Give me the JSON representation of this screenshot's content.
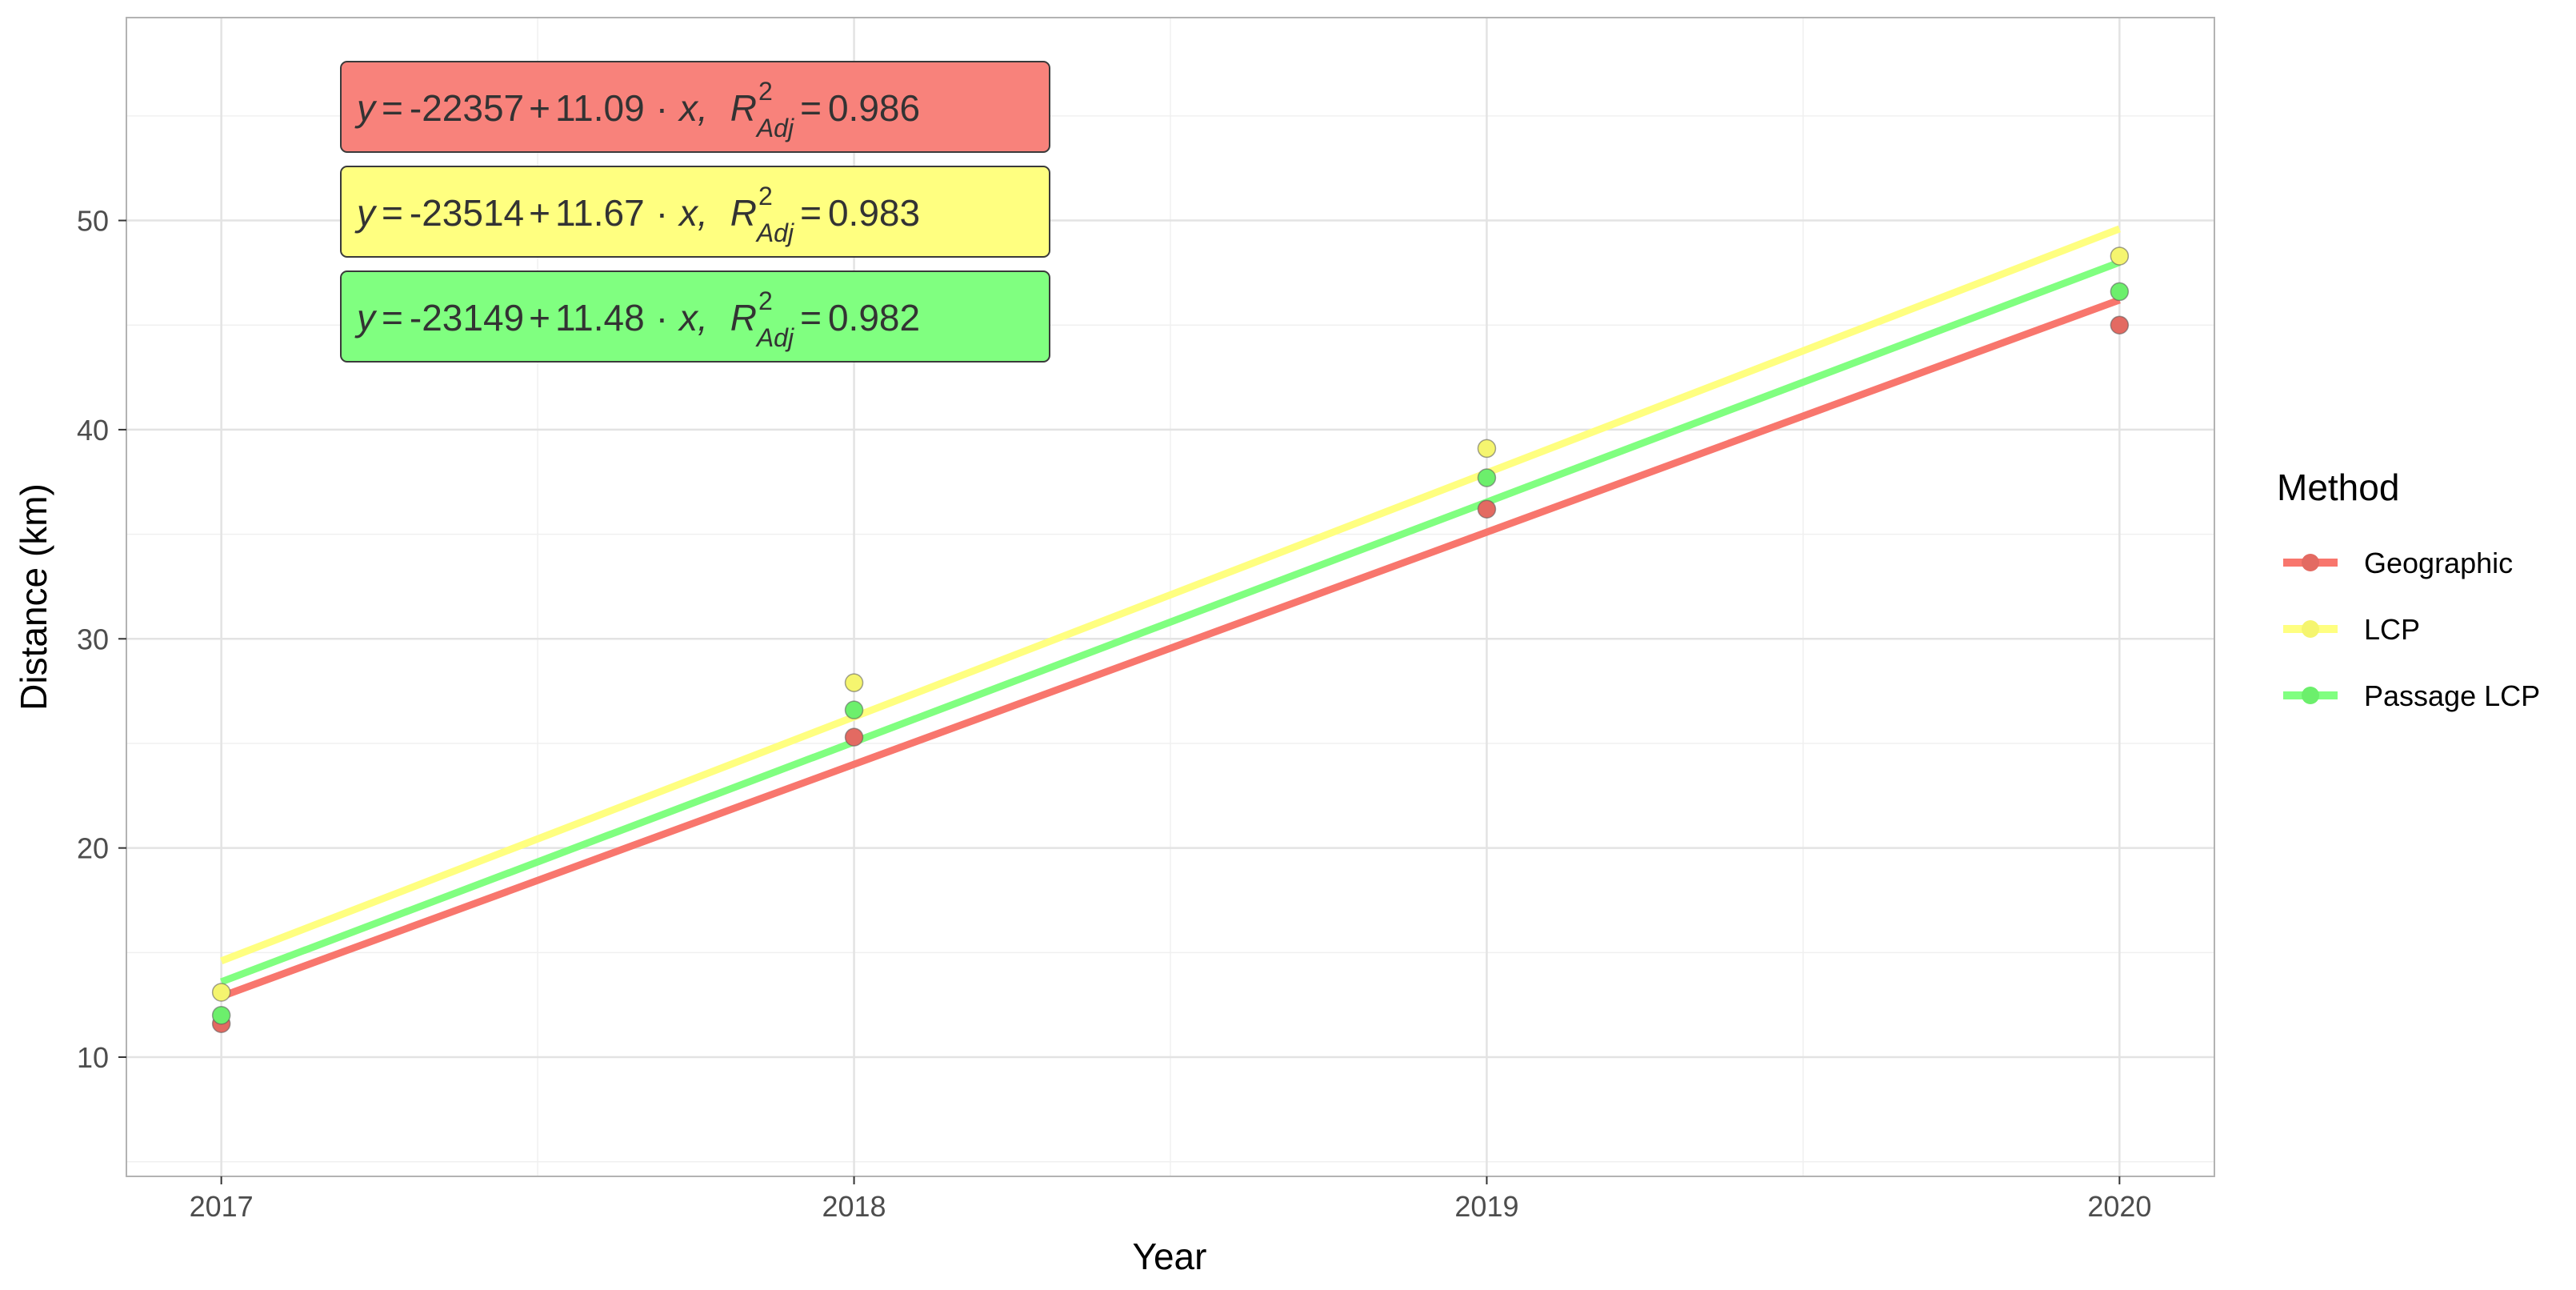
{
  "chart_data": {
    "type": "scatter",
    "xlabel": "Year",
    "ylabel": "Distance (km)",
    "xlim": [
      2016.85,
      2020.15
    ],
    "ylim": [
      4.3,
      59.7
    ],
    "x_ticks": [
      2017,
      2018,
      2019,
      2020
    ],
    "y_ticks": [
      10,
      20,
      30,
      40,
      50
    ],
    "grid": true,
    "legend": {
      "title": "Method",
      "position": "right"
    },
    "series": [
      {
        "name": "Geographic",
        "color": "#f8766d",
        "point_color": "#e36a62",
        "x": [
          2017,
          2018,
          2019,
          2020
        ],
        "y": [
          11.6,
          25.3,
          36.2,
          45.0
        ],
        "fit": {
          "intercept": -22357,
          "slope": 11.09,
          "r2_adj": 0.986,
          "y_start": 12.9,
          "y_end": 46.2
        },
        "equation": {
          "y": "y",
          "eq": "=",
          "intercept": "-22357",
          "plus": "+",
          "slope": "11.09",
          "dot": "·",
          "x": "x,",
          "r": "R",
          "sup": "2",
          "sub": "Adj",
          "eq2": "=",
          "r2": "0.986"
        }
      },
      {
        "name": "LCP",
        "color": "#ffff80",
        "point_color": "#f5f56f",
        "x": [
          2017,
          2018,
          2019,
          2020
        ],
        "y": [
          13.1,
          27.9,
          39.1,
          48.3
        ],
        "fit": {
          "intercept": -23514,
          "slope": 11.67,
          "r2_adj": 0.983,
          "y_start": 14.6,
          "y_end": 49.6
        },
        "equation": {
          "y": "y",
          "eq": "=",
          "intercept": "-23514",
          "plus": "+",
          "slope": "11.67",
          "dot": "·",
          "x": "x,",
          "r": "R",
          "sup": "2",
          "sub": "Adj",
          "eq2": "=",
          "r2": "0.983"
        }
      },
      {
        "name": "Passage LCP",
        "color": "#80ff80",
        "point_color": "#6cef6c",
        "x": [
          2017,
          2018,
          2019,
          2020
        ],
        "y": [
          12.0,
          26.6,
          37.7,
          46.6
        ],
        "fit": {
          "intercept": -23149,
          "slope": 11.48,
          "r2_adj": 0.982,
          "y_start": 13.6,
          "y_end": 48.0
        },
        "equation": {
          "y": "y",
          "eq": "=",
          "intercept": "-23149",
          "plus": "+",
          "slope": "11.48",
          "dot": "·",
          "x": "x,",
          "r": "R",
          "sup": "2",
          "sub": "Adj",
          "eq2": "=",
          "r2": "0.982"
        }
      }
    ]
  }
}
